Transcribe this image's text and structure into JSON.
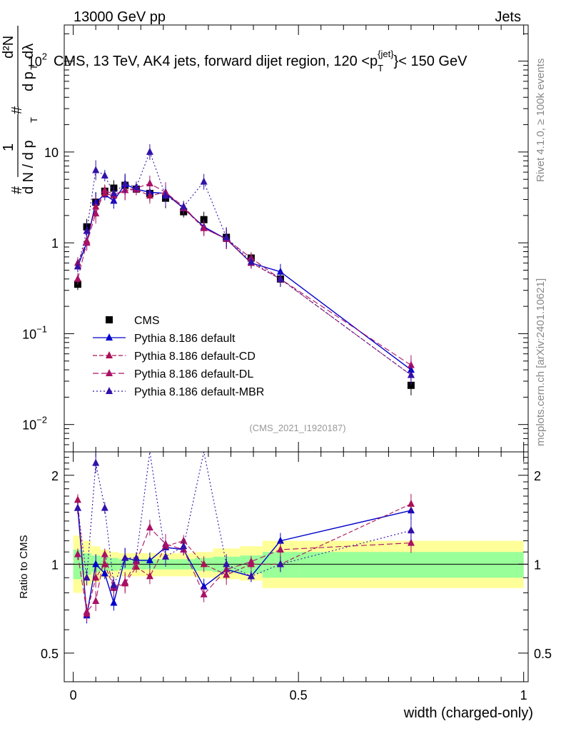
{
  "header": {
    "left": "13000 GeV pp",
    "right": "Jets"
  },
  "side_texts": {
    "rivet": "Rivet 4.1.0, ≥ 100k events",
    "mcplots": "mcplots.cern.ch [arXiv:2401.10621]"
  },
  "colors": {
    "cms": "#000000",
    "default": "#0000cc",
    "cd": "#aa1155",
    "dl": "#aa1166",
    "mbr": "#3311aa",
    "band_yellow": "#ffff99",
    "band_green": "#99ff99"
  },
  "chart_data": [
    {
      "type": "line",
      "scale": "log",
      "title_main": "CMS, 13 TeV, AK4 jets, forward dijet region, 120 <p",
      "title_sub": "T",
      "title_sup": "{jet}",
      "title_end": "}< 150 GeV",
      "ylabel_parts": [
        "#",
        "1",
        "d N / d p",
        "T",
        "#",
        "d p",
        "T",
        "d²N",
        "dλ"
      ],
      "analysis_id": "(CMS_2021_I1920187)",
      "xlim": [
        -0.02,
        1.01
      ],
      "ylim": [
        0.005,
        250
      ],
      "y_ticks": [
        {
          "v": 0.01,
          "base": "10",
          "exp": "−2"
        },
        {
          "v": 0.1,
          "base": "10",
          "exp": "−1"
        },
        {
          "v": 1,
          "base": "1",
          "exp": ""
        },
        {
          "v": 10,
          "base": "10",
          "exp": ""
        },
        {
          "v": 100,
          "base": "10",
          "exp": "2"
        }
      ],
      "legend": [
        {
          "key": "cms",
          "label": "CMS"
        },
        {
          "key": "default",
          "label": "Pythia 8.186 default"
        },
        {
          "key": "cd",
          "label": "Pythia 8.186 default-CD"
        },
        {
          "key": "dl",
          "label": "Pythia 8.186 default-DL"
        },
        {
          "key": "mbr",
          "label": "Pythia 8.186 default-MBR"
        }
      ],
      "x": [
        0.01,
        0.03,
        0.05,
        0.07,
        0.09,
        0.115,
        0.14,
        0.17,
        0.205,
        0.245,
        0.29,
        0.34,
        0.395,
        0.46,
        0.75
      ],
      "series": [
        {
          "name": "CMS",
          "key": "cms",
          "marker": "square",
          "values": [
            0.35,
            1.5,
            2.8,
            3.7,
            4.0,
            4.3,
            3.9,
            3.5,
            3.1,
            2.2,
            1.8,
            1.15,
            0.68,
            0.4,
            0.027
          ]
        },
        {
          "name": "Pythia 8.186 default",
          "key": "default",
          "marker": "triangle",
          "values": [
            0.55,
            1.0,
            2.8,
            3.4,
            2.9,
            4.4,
            3.9,
            3.6,
            3.5,
            2.4,
            1.5,
            1.1,
            0.6,
            0.48,
            0.04
          ]
        },
        {
          "name": "Pythia 8.186 default-CD",
          "key": "cd",
          "marker": "triangle",
          "values": [
            0.6,
            1.05,
            2.5,
            3.5,
            3.3,
            3.8,
            3.85,
            3.3,
            3.6,
            2.4,
            1.45,
            1.1,
            0.6,
            0.4,
            0.035
          ]
        },
        {
          "name": "Pythia 8.186 default-DL",
          "key": "dl",
          "marker": "triangle",
          "values": [
            0.4,
            1.0,
            2.1,
            3.8,
            3.4,
            3.8,
            4.0,
            4.5,
            3.6,
            2.5,
            1.45,
            1.1,
            0.68,
            0.4,
            0.045
          ]
        },
        {
          "name": "Pythia 8.186 default-MBR",
          "key": "mbr",
          "marker": "triangle",
          "values": [
            0.55,
            1.35,
            6.3,
            5.5,
            3.5,
            4.5,
            4.1,
            10.0,
            3.3,
            2.5,
            4.7,
            1.15,
            0.62,
            0.4,
            0.035
          ]
        }
      ]
    },
    {
      "type": "line",
      "scale": "log",
      "ylabel": "Ratio to CMS",
      "xlabel": "width (charged-only)",
      "xlim": [
        -0.02,
        1.01
      ],
      "ylim": [
        0.4,
        2.4
      ],
      "y_ticks_labeled": [
        0.5,
        1,
        2
      ],
      "x_ticks_labeled": [
        0,
        0.5,
        1
      ],
      "band_edges": [
        0.0,
        0.02,
        0.04,
        0.06,
        0.08,
        0.1,
        0.13,
        0.15,
        0.19,
        0.22,
        0.27,
        0.31,
        0.37,
        0.42,
        0.5,
        1.0
      ],
      "band_yellow_lo": [
        0.8,
        0.85,
        0.87,
        0.9,
        0.9,
        0.91,
        0.91,
        0.91,
        0.91,
        0.91,
        0.9,
        0.89,
        0.88,
        0.83,
        0.83
      ],
      "band_yellow_hi": [
        1.25,
        1.2,
        1.15,
        1.12,
        1.1,
        1.09,
        1.09,
        1.09,
        1.09,
        1.09,
        1.1,
        1.13,
        1.15,
        1.2,
        1.2
      ],
      "band_green_lo": [
        0.89,
        0.92,
        0.94,
        0.95,
        0.95,
        0.96,
        0.96,
        0.96,
        0.96,
        0.96,
        0.95,
        0.94,
        0.93,
        0.9,
        0.9
      ],
      "band_green_hi": [
        1.12,
        1.09,
        1.07,
        1.06,
        1.05,
        1.04,
        1.04,
        1.04,
        1.04,
        1.04,
        1.05,
        1.06,
        1.07,
        1.1,
        1.1
      ],
      "x": [
        0.01,
        0.03,
        0.05,
        0.07,
        0.09,
        0.115,
        0.14,
        0.17,
        0.205,
        0.245,
        0.29,
        0.34,
        0.395,
        0.46,
        0.75
      ],
      "series": [
        {
          "key": "default",
          "values": [
            1.55,
            0.67,
            1.0,
            0.93,
            0.74,
            1.05,
            1.03,
            1.03,
            1.14,
            1.12,
            0.84,
            0.96,
            0.91,
            1.2,
            1.52
          ]
        },
        {
          "key": "cd",
          "values": [
            1.65,
            0.68,
            0.9,
            1.0,
            0.83,
            0.86,
            0.98,
            0.91,
            1.15,
            1.2,
            1.0,
            0.92,
            1.0,
            1.0,
            1.6
          ]
        },
        {
          "key": "dl",
          "values": [
            1.08,
            0.69,
            0.75,
            1.08,
            0.84,
            0.87,
            1.02,
            1.33,
            1.17,
            1.12,
            0.79,
            0.96,
            1.02,
            1.12,
            1.18
          ]
        },
        {
          "key": "mbr",
          "values": [
            1.55,
            0.9,
            2.2,
            1.55,
            0.85,
            1.05,
            1.05,
            2.85,
            1.06,
            1.15,
            2.6,
            1.0,
            0.91,
            1.0,
            1.3
          ]
        }
      ]
    }
  ]
}
